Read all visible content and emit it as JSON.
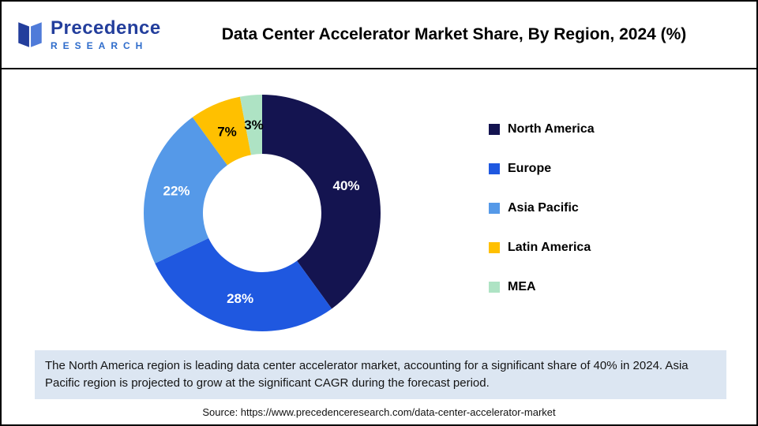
{
  "header": {
    "logo": {
      "line1": "Precedence",
      "line2": "RESEARCH"
    },
    "title": "Data Center Accelerator Market Share, By Region, 2024 (%)"
  },
  "chart_data": {
    "type": "pie",
    "donut": true,
    "title": "Data Center Accelerator Market Share, By Region, 2024 (%)",
    "categories": [
      "North America",
      "Europe",
      "Asia Pacific",
      "Latin America",
      "MEA"
    ],
    "values": [
      40,
      28,
      22,
      7,
      3
    ],
    "unit": "%",
    "colors": [
      "#141450",
      "#1F58E0",
      "#5599E8",
      "#FFC000",
      "#AEE3C4"
    ],
    "label_colors": [
      "#ffffff",
      "#ffffff",
      "#ffffff",
      "#000000",
      "#000000"
    ],
    "start_angle_deg": 0,
    "direction": "clockwise",
    "inner_radius_ratio": 0.5,
    "legend_position": "right",
    "data_labels": [
      "40%",
      "28%",
      "22%",
      "7%",
      "3%"
    ]
  },
  "note": "The North America region is leading data center accelerator market, accounting for a significant share of 40% in 2024. Asia Pacific region is projected to grow at the significant CAGR during the forecast period.",
  "source": "Source: https://www.precedenceresearch.com/data-center-accelerator-market"
}
